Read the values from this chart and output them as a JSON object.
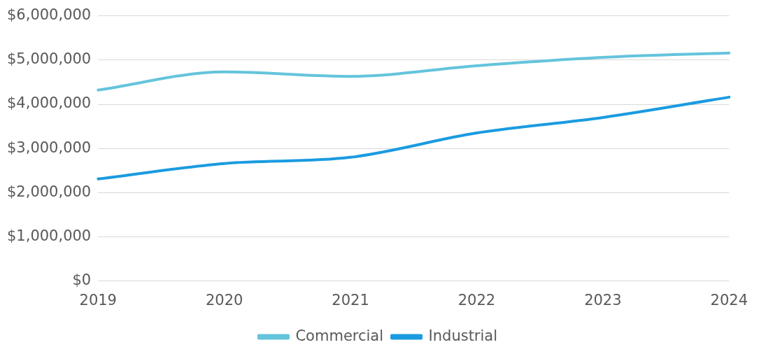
{
  "chart_data": {
    "type": "line",
    "categories": [
      "2019",
      "2020",
      "2021",
      "2022",
      "2023",
      "2024"
    ],
    "series": [
      {
        "name": "Commercial",
        "color": "#64c4dc",
        "values": [
          4320000,
          4730000,
          4630000,
          4870000,
          5060000,
          5160000
        ]
      },
      {
        "name": "Industrial",
        "color": "#1a9be0",
        "values": [
          2310000,
          2660000,
          2800000,
          3350000,
          3700000,
          4160000
        ]
      }
    ],
    "ylim": [
      0,
      6000000
    ],
    "yticks": [
      {
        "value": 0,
        "label": "$0"
      },
      {
        "value": 1000000,
        "label": "$1,000,000"
      },
      {
        "value": 2000000,
        "label": "$2,000,000"
      },
      {
        "value": 3000000,
        "label": "$3,000,000"
      },
      {
        "value": 4000000,
        "label": "$4,000,000"
      },
      {
        "value": 5000000,
        "label": "$5,000,000"
      },
      {
        "value": 6000000,
        "label": "$6,000,000"
      }
    ],
    "grid": "y",
    "legend": "bottom",
    "marker": "none",
    "line_style": "solid"
  }
}
